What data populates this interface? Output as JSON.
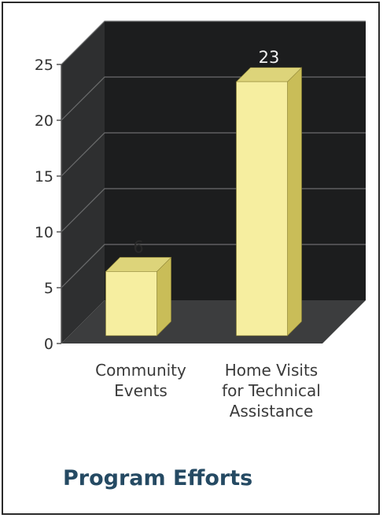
{
  "chart_data": {
    "type": "bar",
    "title": "Program Efforts",
    "categories": [
      "Community Events",
      "Home Visits for Technical Assistance"
    ],
    "category_lines": [
      [
        "Community",
        "Events"
      ],
      [
        "Home Visits",
        "for Technical",
        "Assistance"
      ]
    ],
    "values": [
      6,
      23
    ],
    "data_labels": [
      "6",
      "23"
    ],
    "ylim": [
      0,
      25
    ],
    "yticks": [
      "0",
      "5",
      "10",
      "15",
      "20",
      "25"
    ],
    "grid": true,
    "style": "3d-column",
    "colors": {
      "bar_front": "#f6eea0",
      "bar_side": "#c9bd58",
      "bar_top": "#ddd47a",
      "back_wall": "#1c1d1e",
      "side_wall": "#2e2f30",
      "floor": "#3c3d3e",
      "gridline": "#6c6d6e",
      "data_label_on_dark": "#f2f2f2",
      "title": "#254a63"
    }
  }
}
